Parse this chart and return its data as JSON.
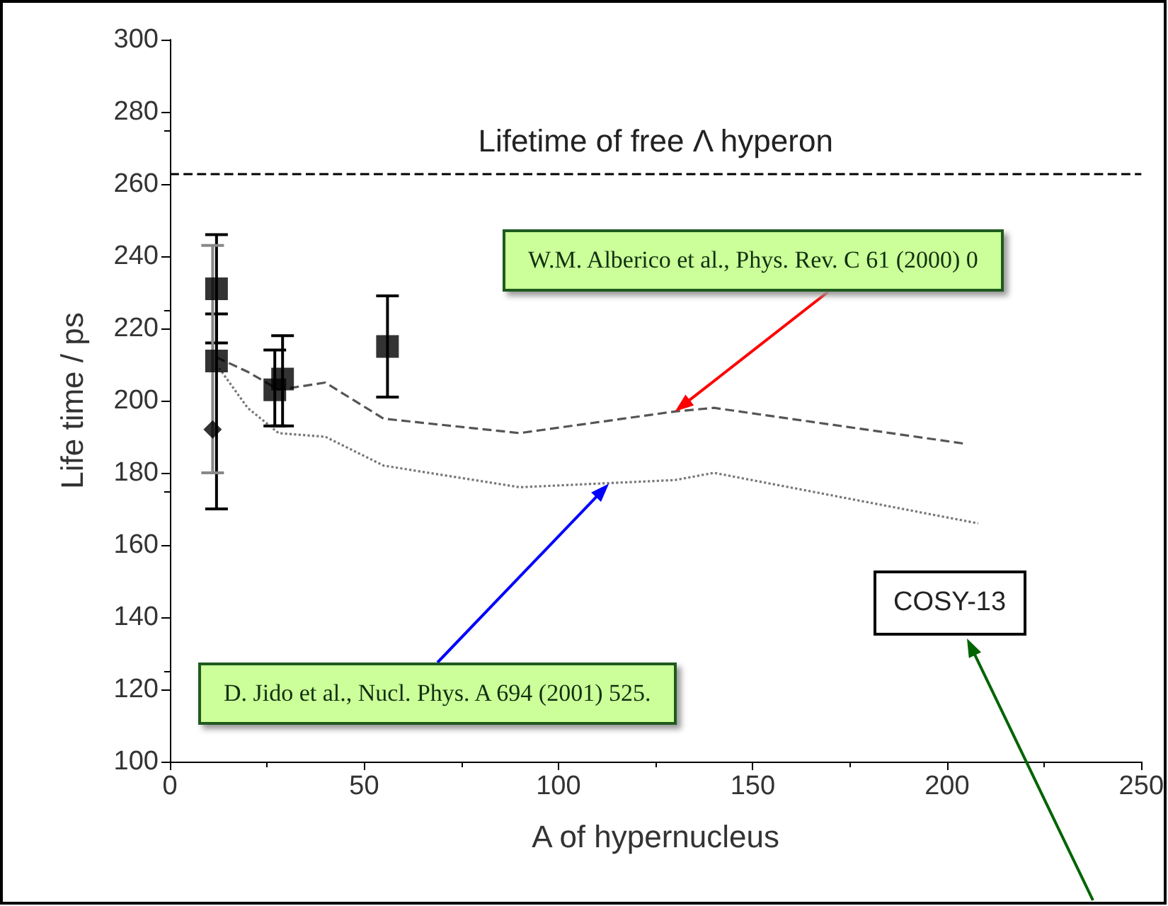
{
  "chart_data": {
    "type": "scatter",
    "xlabel": "A of hypernucleus",
    "ylabel": "Life time / ps",
    "xlim": [
      0,
      250
    ],
    "xticks": [
      0,
      50,
      100,
      150,
      200,
      250
    ],
    "ylim": [
      100,
      300
    ],
    "yticks": [
      100,
      120,
      140,
      160,
      180,
      200,
      220,
      240,
      260,
      280,
      300
    ],
    "grid": false,
    "series": [
      {
        "type": "line",
        "line_style": "dashed",
        "marker": "none",
        "color": "#555555",
        "x": [
          12,
          20,
          28,
          40,
          55,
          90,
          130,
          140,
          205
        ],
        "values": [
          212,
          208,
          203,
          205,
          195,
          191,
          197,
          198,
          188
        ]
      },
      {
        "type": "line",
        "line_style": "dotted",
        "marker": "none",
        "color": "#777777",
        "x": [
          12,
          20,
          28,
          40,
          55,
          90,
          130,
          140,
          208
        ],
        "values": [
          210,
          198,
          191,
          190,
          182,
          176,
          178,
          180,
          166
        ]
      },
      {
        "marker": "square",
        "color": "#000000",
        "x": [
          12,
          12,
          27,
          29,
          56
        ],
        "values": [
          231,
          211,
          203,
          206,
          215
        ],
        "errors": [
          15,
          [
            170,
            224
          ],
          [
            193,
            214
          ],
          [
            193,
            218
          ],
          14
        ]
      },
      {
        "marker": "diamond",
        "color": "#000000",
        "x": [
          11
        ],
        "values": [
          192
        ],
        "errors": [
          [
            180,
            243
          ]
        ]
      }
    ],
    "ref_lines": [
      {
        "axis": "y",
        "value": 263,
        "label": "Lifetime of free Λ hyperon",
        "color": "#000000",
        "line_style": "dashed"
      }
    ],
    "annotations": [
      {
        "text": "W.M. Alberico et al., Phys. Rev. C 61 (2000) 0",
        "x": 130,
        "y": 197
      },
      {
        "text": "D. Jido et al., Nucl. Phys. A 694 (2001) 525.",
        "x": 113,
        "y": 177
      },
      "COSY-13"
    ]
  }
}
